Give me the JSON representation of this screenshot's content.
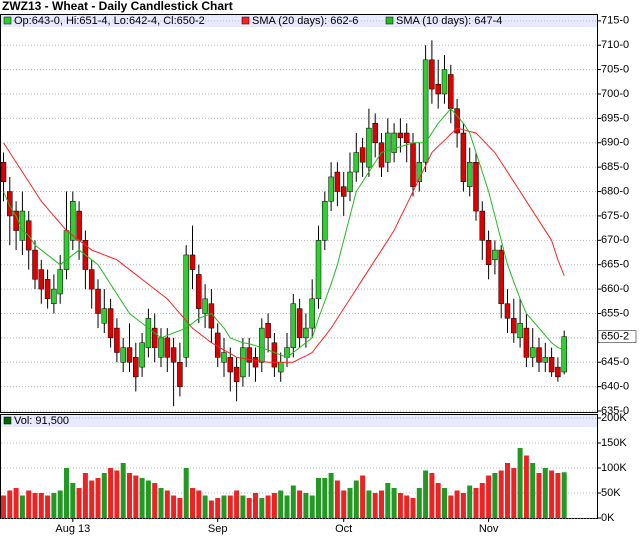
{
  "chart_data": {
    "type": "candlestick",
    "title": "ZWZ13 - Wheat - Daily Candlestick Chart",
    "ohlc_label": "Op:643-0, Hi:651-4, Lo:642-4, Cl:650-2",
    "categories": [
      null,
      null,
      null,
      null,
      null,
      null,
      null,
      null,
      null,
      null,
      null,
      "Aug 13",
      null,
      null,
      null,
      null,
      null,
      null,
      null,
      null,
      null,
      null,
      null,
      null,
      null,
      null,
      null,
      null,
      null,
      null,
      null,
      null,
      null,
      null,
      "Sep",
      null,
      null,
      null,
      null,
      null,
      null,
      null,
      null,
      null,
      null,
      null,
      null,
      null,
      null,
      null,
      null,
      null,
      null,
      null,
      "Oct",
      null,
      null,
      null,
      null,
      null,
      null,
      null,
      null,
      null,
      null,
      null,
      null,
      null,
      null,
      null,
      null,
      null,
      null,
      null,
      null,
      null,
      null,
      "Nov",
      null,
      null,
      null,
      null,
      null,
      null,
      null,
      null,
      null,
      null,
      null,
      null
    ],
    "open": [
      686,
      680,
      676,
      670,
      674,
      668,
      664,
      662,
      657,
      659,
      664,
      670,
      676,
      670,
      664,
      660,
      653,
      656,
      652,
      645,
      648,
      646,
      644,
      648,
      652,
      646,
      650,
      648,
      645,
      646,
      667,
      663,
      655,
      657,
      651,
      645,
      646,
      644,
      642,
      648,
      646,
      645,
      653,
      649,
      643,
      646,
      648,
      656,
      650,
      652,
      658,
      670,
      678,
      684,
      681,
      680,
      684,
      689,
      685,
      694,
      690,
      686,
      688,
      692,
      692,
      690,
      682,
      686,
      707,
      702,
      700,
      704,
      697,
      692,
      681,
      686,
      676,
      670,
      666,
      668,
      657,
      654,
      650,
      652,
      646,
      648,
      645,
      646,
      644,
      643
    ],
    "high": [
      688,
      683,
      678,
      680,
      676,
      670,
      666,
      664,
      663,
      667,
      680,
      680,
      678,
      672,
      666,
      662,
      660,
      658,
      654,
      650,
      653,
      649,
      651,
      656,
      655,
      652,
      652,
      650,
      649,
      669,
      673,
      665,
      661,
      660,
      653,
      650,
      648,
      646,
      650,
      650,
      648,
      654,
      655,
      651,
      647,
      651,
      659,
      658,
      655,
      662,
      673,
      680,
      686,
      686,
      684,
      688,
      692,
      691,
      697,
      696,
      692,
      695,
      694,
      695,
      694,
      692,
      690,
      710,
      711,
      707,
      708,
      706,
      699,
      694,
      689,
      688,
      678,
      672,
      670,
      669,
      660,
      658,
      658,
      655,
      652,
      650,
      649,
      648,
      646,
      651.5
    ],
    "low": [
      678,
      669,
      668,
      667,
      664,
      660,
      657,
      656,
      655,
      657,
      662,
      668,
      666,
      660,
      656,
      652,
      651,
      648,
      645,
      643,
      643,
      639,
      642,
      646,
      645,
      644,
      643,
      636,
      638,
      644,
      660,
      653,
      652,
      649,
      644,
      642,
      639,
      637,
      640,
      642,
      641,
      643,
      647,
      642,
      641,
      644,
      646,
      648,
      648,
      650,
      656,
      668,
      676,
      677,
      675,
      678,
      682,
      683,
      683,
      687,
      683,
      684,
      686,
      688,
      686,
      679,
      680,
      684,
      698,
      697,
      698,
      694,
      689,
      680,
      679,
      674,
      666,
      662,
      663,
      654,
      651,
      649,
      648,
      644,
      644,
      643,
      643,
      642,
      641,
      642.5
    ],
    "close": [
      682,
      675,
      672,
      676,
      668,
      662,
      660,
      658,
      660,
      664,
      672,
      678,
      670,
      664,
      660,
      655,
      656,
      650,
      647,
      648,
      645,
      642,
      649,
      654,
      648,
      650,
      646,
      645,
      640,
      667,
      664,
      656,
      658,
      652,
      646,
      647,
      643,
      641,
      648,
      645,
      644,
      652,
      650,
      644,
      645,
      648,
      657,
      650,
      652,
      658,
      670,
      678,
      683,
      680,
      679,
      684,
      688,
      686,
      693,
      690,
      685,
      692,
      692,
      691,
      690,
      681,
      686,
      707,
      701,
      700,
      705,
      697,
      692,
      682,
      686,
      676,
      670,
      665,
      668,
      657,
      654,
      651,
      653,
      646,
      648,
      645,
      646,
      643,
      642,
      650.25
    ],
    "up_color": "#33cc33",
    "down_color": "#dd0000",
    "last_price": {
      "value": 650.25,
      "label": "650-2"
    },
    "overlays": [
      {
        "name": "SMA (20 days): 662-6",
        "color": "#ff2222",
        "values": [
          690,
          688,
          686,
          684,
          682,
          680,
          678,
          676.5,
          675,
          673.5,
          672,
          671,
          670,
          669,
          668,
          667.5,
          667,
          666.5,
          666,
          665,
          664,
          663,
          662,
          661,
          660,
          659,
          658,
          656.5,
          655,
          653.5,
          652,
          651,
          650,
          649,
          648.3,
          647.5,
          646.8,
          646,
          645.8,
          645.6,
          645.4,
          645.2,
          645,
          645,
          645,
          645,
          645,
          645.7,
          646.3,
          647,
          648.7,
          650.3,
          652,
          654,
          656,
          658,
          660,
          662,
          664,
          666,
          668,
          670,
          672,
          674.7,
          677.3,
          680,
          682.7,
          685.3,
          688,
          689.3,
          690.5,
          691.8,
          693,
          692.7,
          692.3,
          692,
          690.7,
          689.3,
          688,
          686,
          684,
          682,
          680,
          678,
          676,
          674,
          672,
          670,
          666,
          662.75
        ]
      },
      {
        "name": "SMA (10 days): 647-4",
        "color": "#22bb22",
        "values": [
          680,
          677,
          675,
          672,
          671,
          669,
          668,
          667,
          666,
          665,
          666,
          667,
          668,
          667,
          666,
          665,
          663,
          661,
          659,
          657,
          655,
          654,
          653,
          652,
          651,
          650,
          650.5,
          651,
          651.5,
          652,
          653,
          654,
          654.5,
          655,
          653.5,
          652,
          650,
          649.5,
          649,
          648.8,
          648.4,
          648,
          647.5,
          647,
          646.5,
          646,
          647,
          648,
          649,
          650,
          654,
          657.5,
          661,
          665,
          670,
          675,
          680,
          682,
          684,
          686,
          688,
          688.4,
          688.8,
          689.2,
          689.6,
          690,
          690,
          690,
          692,
          694,
          695.5,
          697,
          695.5,
          694,
          692,
          688,
          684,
          680,
          675,
          670,
          665,
          661.5,
          658,
          655,
          653.5,
          652,
          650.5,
          649,
          648,
          647.5
        ]
      }
    ],
    "ylim": [
      634.8,
      716.4
    ],
    "yticks": [
      {
        "value": 635,
        "label": "635-0"
      },
      {
        "value": 640,
        "label": "640-0"
      },
      {
        "value": 645,
        "label": "645-0"
      },
      {
        "value": 650,
        "label": "650-0"
      },
      {
        "value": 655,
        "label": "655-0"
      },
      {
        "value": 660,
        "label": "660-0"
      },
      {
        "value": 665,
        "label": "665-0"
      },
      {
        "value": 670,
        "label": "670-0"
      },
      {
        "value": 675,
        "label": "675-0"
      },
      {
        "value": 680,
        "label": "680-0"
      },
      {
        "value": 685,
        "label": "685-0"
      },
      {
        "value": 690,
        "label": "690-0"
      },
      {
        "value": 695,
        "label": "695-0"
      },
      {
        "value": 700,
        "label": "700-0"
      },
      {
        "value": 705,
        "label": "705-0"
      },
      {
        "value": 710,
        "label": "710-0"
      },
      {
        "value": 715,
        "label": "715-0"
      }
    ],
    "grid": true,
    "volume": {
      "name": "Vol: 91,500",
      "color": "#006600",
      "up_color": "#229922",
      "down_color": "#ee2222",
      "values": [
        45000,
        55000,
        60000,
        45000,
        55000,
        50000,
        50000,
        45000,
        50000,
        55000,
        100000,
        70000,
        60000,
        90000,
        75000,
        80000,
        90000,
        100000,
        95000,
        110000,
        90000,
        85000,
        80000,
        75000,
        70000,
        60000,
        55000,
        45000,
        40000,
        100000,
        60000,
        55000,
        45000,
        35000,
        40000,
        45000,
        45000,
        55000,
        45000,
        40000,
        50000,
        40000,
        45000,
        50000,
        55000,
        45000,
        65000,
        55000,
        50000,
        45000,
        80000,
        80000,
        90000,
        75000,
        55000,
        60000,
        75000,
        85000,
        55000,
        50000,
        55000,
        70000,
        60000,
        50000,
        45000,
        40000,
        60000,
        95000,
        90000,
        70000,
        60000,
        45000,
        55000,
        50000,
        65000,
        60000,
        70000,
        85000,
        90000,
        95000,
        110000,
        100000,
        140000,
        125000,
        110000,
        90000,
        100000,
        95000,
        90000,
        91500
      ],
      "ylim": [
        0,
        208000
      ],
      "yticks": [
        {
          "value": 0,
          "label": "0K"
        },
        {
          "value": 50000,
          "label": "50K"
        },
        {
          "value": 100000,
          "label": "100K"
        },
        {
          "value": 150000,
          "label": "150K"
        },
        {
          "value": 200000,
          "label": "200K"
        }
      ]
    }
  }
}
